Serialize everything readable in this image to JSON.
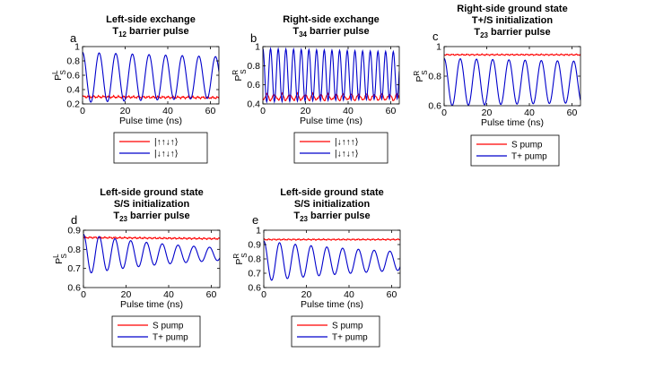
{
  "chart_data": [
    {
      "letter": "a",
      "type": "line",
      "title": [
        "Left-side exchange",
        "T12 barrier pulse"
      ],
      "title_sub": {
        "line": 1,
        "base": "T",
        "sub": "12",
        "rest": " barrier pulse"
      },
      "xlabel": "Pulse time (ns)",
      "ylabel": {
        "base": "P",
        "sup": "L",
        "sub": "S"
      },
      "xlim": [
        0,
        64
      ],
      "ylim": [
        0.2,
        1
      ],
      "xticks": [
        0,
        20,
        40,
        60
      ],
      "yticks": [
        0.2,
        0.4,
        0.6,
        0.8,
        1
      ],
      "ytick_labels": [
        "0.2",
        "0.4",
        "0.6",
        "0.8",
        "1"
      ],
      "series": [
        {
          "name": "|↑↑↓↑⟩",
          "color": "#ff0000",
          "model": {
            "kind": "flat",
            "base": 0.3,
            "noise": 0.02,
            "trend": -0.0002
          }
        },
        {
          "name": "|↓↑↓↑⟩",
          "color": "#0000cc",
          "model": {
            "kind": "osc",
            "mean": 0.57,
            "amp0": 0.35,
            "period": 7.8,
            "phase": 0,
            "decay": 0.003
          }
        }
      ]
    },
    {
      "letter": "b",
      "type": "line",
      "title": [
        "Right-side exchange",
        "T34 barrier pulse"
      ],
      "title_sub": {
        "line": 1,
        "base": "T",
        "sub": "34",
        "rest": " barrier pulse"
      },
      "xlabel": "Pulse time (ns)",
      "ylabel": {
        "base": "P",
        "sup": "R",
        "sub": "S"
      },
      "xlim": [
        0,
        64
      ],
      "ylim": [
        0.4,
        1
      ],
      "xticks": [
        0,
        20,
        40,
        60
      ],
      "yticks": [
        0.4,
        0.6,
        0.8,
        1
      ],
      "ytick_labels": [
        "0.4",
        "0.6",
        "0.8",
        "1"
      ],
      "series": [
        {
          "name": "|↓↑↑↑⟩",
          "color": "#ff0000",
          "model": {
            "kind": "osc",
            "mean": 0.47,
            "amp0": 0.03,
            "period": 3.6,
            "phase": 3.14,
            "decay": 0.0,
            "noise": 0.015
          }
        },
        {
          "name": "|↓↑↓↑⟩",
          "color": "#0000cc",
          "model": {
            "kind": "osc",
            "mean": 0.7,
            "amp0": 0.28,
            "period": 3.6,
            "phase": 0,
            "decay": 0.002
          }
        }
      ]
    },
    {
      "letter": "c",
      "type": "line",
      "title": [
        "Right-side ground state",
        "T+/S initialization",
        "T23 barrier pulse"
      ],
      "title_sub": {
        "line": 2,
        "base": "T",
        "sub": "23",
        "rest": " barrier pulse"
      },
      "xlabel": "Pulse time (ns)",
      "ylabel": {
        "base": "P",
        "sup": "R",
        "sub": "S"
      },
      "xlim": [
        0,
        64
      ],
      "ylim": [
        0.6,
        1
      ],
      "xticks": [
        0,
        20,
        40,
        60
      ],
      "yticks": [
        0.6,
        0.8,
        1
      ],
      "ytick_labels": [
        "0.6",
        "0.8",
        "1"
      ],
      "series": [
        {
          "name": "S pump",
          "color": "#ff0000",
          "model": {
            "kind": "flat",
            "base": 0.945,
            "noise": 0.006,
            "trend": 0.0
          }
        },
        {
          "name": "T+ pump",
          "color": "#0000cc",
          "model": {
            "kind": "osc",
            "mean": 0.76,
            "amp0": 0.16,
            "period": 7.6,
            "phase": 0,
            "decay": 0.002
          }
        }
      ]
    },
    {
      "letter": "d",
      "type": "line",
      "title": [
        "Left-side ground state",
        "S/S initialization",
        "T23 barrier pulse"
      ],
      "title_sub": {
        "line": 2,
        "base": "T",
        "sub": "23",
        "rest": " barrier pulse"
      },
      "xlabel": "Pulse time (ns)",
      "ylabel": {
        "base": "P",
        "sup": "L",
        "sub": "S"
      },
      "xlim": [
        0,
        64
      ],
      "ylim": [
        0.6,
        0.9
      ],
      "xticks": [
        0,
        20,
        40,
        60
      ],
      "yticks": [
        0.6,
        0.7,
        0.8,
        0.9
      ],
      "ytick_labels": [
        "0.6",
        "0.7",
        "0.8",
        "0.9"
      ],
      "series": [
        {
          "name": "S pump",
          "color": "#ff0000",
          "model": {
            "kind": "flat",
            "base": 0.862,
            "noise": 0.006,
            "trend": -0.0001
          }
        },
        {
          "name": "T+ pump",
          "color": "#0000cc",
          "model": {
            "kind": "osc",
            "mean": 0.775,
            "amp0": 0.105,
            "period": 7.4,
            "phase": 0,
            "decay": 0.018
          }
        }
      ]
    },
    {
      "letter": "e",
      "type": "line",
      "title": [
        "Left-side ground state",
        "S/S initialization",
        "T23 barrier pulse"
      ],
      "title_sub": {
        "line": 2,
        "base": "T",
        "sub": "23",
        "rest": " barrier pulse"
      },
      "xlabel": "Pulse time (ns)",
      "ylabel": {
        "base": "P",
        "sup": "R",
        "sub": "S"
      },
      "xlim": [
        0,
        64
      ],
      "ylim": [
        0.6,
        1
      ],
      "xticks": [
        0,
        20,
        40,
        60
      ],
      "yticks": [
        0.6,
        0.7,
        0.8,
        0.9,
        1
      ],
      "ytick_labels": [
        "0.6",
        "0.7",
        "0.8",
        "0.9",
        "1"
      ],
      "series": [
        {
          "name": "S pump",
          "color": "#ff0000",
          "model": {
            "kind": "flat",
            "base": 0.935,
            "noise": 0.006,
            "trend": 0.0
          }
        },
        {
          "name": "T+ pump",
          "color": "#0000cc",
          "model": {
            "kind": "osc",
            "mean": 0.785,
            "amp0": 0.14,
            "period": 7.4,
            "phase": 0,
            "decay": 0.012
          }
        }
      ]
    }
  ]
}
